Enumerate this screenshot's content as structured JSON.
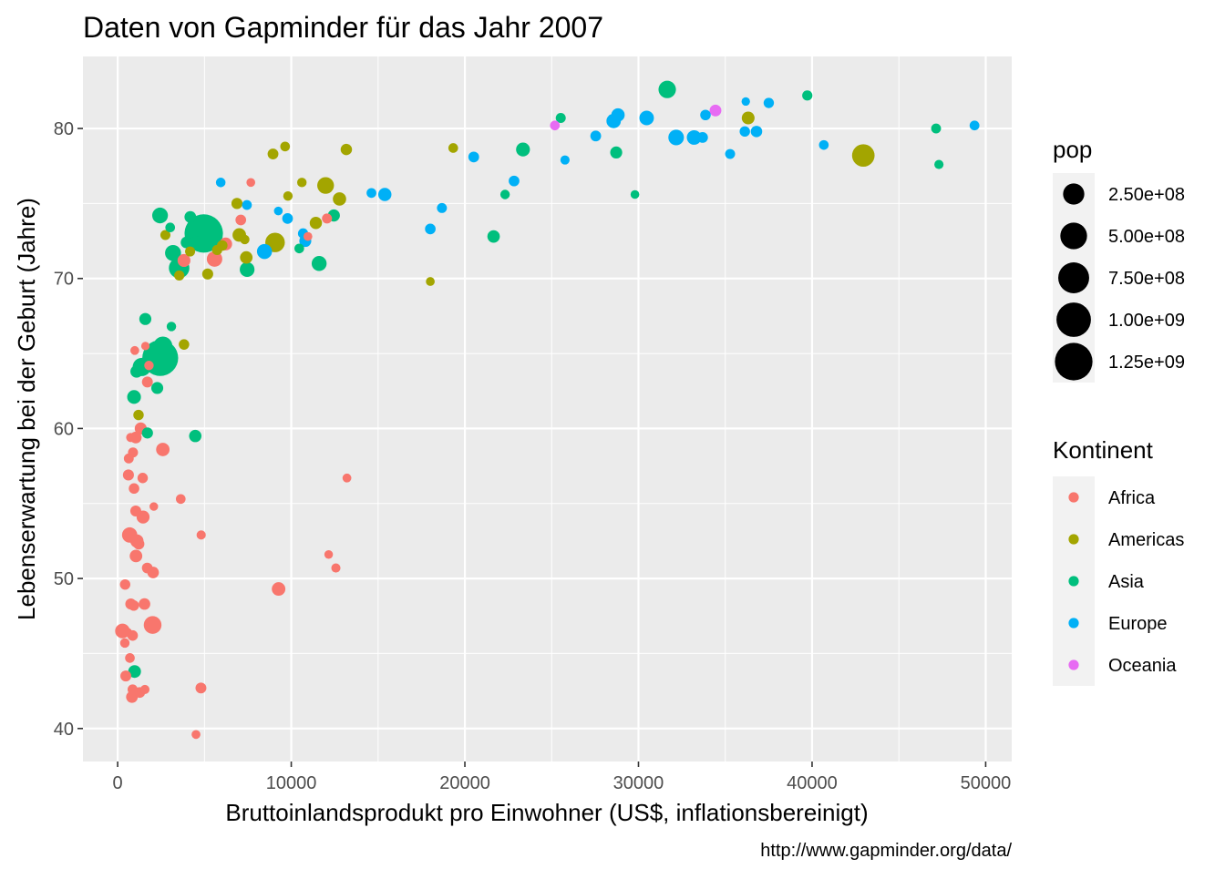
{
  "chart_data": {
    "type": "scatter",
    "title": "Daten von Gapminder für das Jahr 2007",
    "xlabel": "Bruttoinlandsprodukt pro Einwohner (US$, inflationsbereinigt)",
    "ylabel": "Lebenserwartung bei der Geburt (Jahre)",
    "caption": "http://www.gapminder.org/data/",
    "xlim": [
      -2000,
      51500
    ],
    "ylim": [
      37.8,
      84.8
    ],
    "x_ticks": [
      0,
      10000,
      20000,
      30000,
      40000,
      50000
    ],
    "x_tick_labels": [
      "0",
      "10000",
      "20000",
      "30000",
      "40000",
      "50000"
    ],
    "y_ticks": [
      40,
      50,
      60,
      70,
      80
    ],
    "y_tick_labels": [
      "40",
      "50",
      "60",
      "70",
      "80"
    ],
    "grid": true,
    "legend_position": "right",
    "size_legend": {
      "title": "pop",
      "entries": [
        {
          "value": 250000000,
          "label": "2.50e+08"
        },
        {
          "value": 500000000,
          "label": "5.00e+08"
        },
        {
          "value": 750000000,
          "label": "7.50e+08"
        },
        {
          "value": 1000000000,
          "label": "1.00e+09"
        },
        {
          "value": 1250000000,
          "label": "1.25e+09"
        }
      ]
    },
    "color_legend": {
      "title": "Kontinent",
      "entries": [
        {
          "name": "Africa",
          "color": "#F8766D"
        },
        {
          "name": "Americas",
          "color": "#A3A500"
        },
        {
          "name": "Asia",
          "color": "#00BF7D"
        },
        {
          "name": "Europe",
          "color": "#00B0F6"
        },
        {
          "name": "Oceania",
          "color": "#E76BF3"
        }
      ]
    },
    "series": [
      {
        "name": "Africa",
        "color": "#F8766D",
        "points": [
          [
            6223,
            72.3,
            33
          ],
          [
            4797,
            42.7,
            12
          ],
          [
            1441,
            56.7,
            8
          ],
          [
            12570,
            50.7,
            2
          ],
          [
            1217,
            52.3,
            14
          ],
          [
            430,
            49.6,
            8
          ],
          [
            2042,
            50.4,
            18
          ],
          [
            706,
            44.7,
            4
          ],
          [
            1704,
            50.7,
            10
          ],
          [
            986,
            65.2,
            1
          ],
          [
            278,
            46.5,
            64
          ],
          [
            3633,
            55.3,
            4
          ],
          [
            1545,
            48.3,
            18
          ],
          [
            2082,
            54.8,
            0.5
          ],
          [
            5581,
            71.3,
            80
          ],
          [
            12154,
            51.6,
            0.5
          ],
          [
            641,
            58.0,
            5
          ],
          [
            691,
            52.9,
            76
          ],
          [
            13206,
            56.7,
            1
          ],
          [
            753,
            59.4,
            2
          ],
          [
            1328,
            60.0,
            23
          ],
          [
            943,
            56.0,
            9
          ],
          [
            580,
            46.4,
            1.5
          ],
          [
            1463,
            54.1,
            35
          ],
          [
            1569,
            42.6,
            2
          ],
          [
            415,
            45.7,
            3
          ],
          [
            12057,
            74.0,
            6
          ],
          [
            1045,
            59.4,
            19
          ],
          [
            759,
            48.3,
            13
          ],
          [
            1042,
            54.5,
            12
          ],
          [
            1803,
            64.2,
            3
          ],
          [
            10957,
            72.8,
            1
          ],
          [
            3820,
            71.2,
            34
          ],
          [
            824,
            42.1,
            20
          ],
          [
            4811,
            52.9,
            2
          ],
          [
            620,
            56.9,
            13
          ],
          [
            2014,
            46.9,
            135
          ],
          [
            7670,
            76.4,
            0.8
          ],
          [
            863,
            46.2,
            9
          ],
          [
            1598,
            65.5,
            0.2
          ],
          [
            1712,
            63.1,
            12
          ],
          [
            862,
            42.6,
            6
          ],
          [
            926,
            48.2,
            9
          ],
          [
            9270,
            49.3,
            44
          ],
          [
            2602,
            58.6,
            42
          ],
          [
            4513,
            39.6,
            1
          ],
          [
            1107,
            52.5,
            40
          ],
          [
            883,
            58.4,
            6
          ],
          [
            7093,
            73.9,
            10
          ],
          [
            1056,
            51.5,
            30
          ],
          [
            1271,
            42.4,
            11
          ],
          [
            470,
            43.5,
            12
          ]
        ]
      },
      {
        "name": "Americas",
        "color": "#A3A500",
        "points": [
          [
            12779,
            75.3,
            40
          ],
          [
            3822,
            65.6,
            9
          ],
          [
            9066,
            72.4,
            190
          ],
          [
            36319,
            80.7,
            33
          ],
          [
            13172,
            78.6,
            16
          ],
          [
            7007,
            72.9,
            44
          ],
          [
            9645,
            78.8,
            4
          ],
          [
            8948,
            78.3,
            11
          ],
          [
            6025,
            72.2,
            9
          ],
          [
            6873,
            75.0,
            14
          ],
          [
            5728,
            71.9,
            7
          ],
          [
            5186,
            70.3,
            13
          ],
          [
            1202,
            60.9,
            8
          ],
          [
            3548,
            70.2,
            7
          ],
          [
            7321,
            72.6,
            3
          ],
          [
            11978,
            76.2,
            108
          ],
          [
            2749,
            72.9,
            6
          ],
          [
            9809,
            75.5,
            3
          ],
          [
            4173,
            71.8,
            6
          ],
          [
            7409,
            71.4,
            29
          ],
          [
            19329,
            78.7,
            4
          ],
          [
            18009,
            69.8,
            1
          ],
          [
            42952,
            78.2,
            301
          ],
          [
            10611,
            76.4,
            3
          ],
          [
            11416,
            73.7,
            26
          ]
        ]
      },
      {
        "name": "Asia",
        "color": "#00BF7D",
        "points": [
          [
            975,
            43.8,
            32
          ],
          [
            29796,
            75.6,
            0.7
          ],
          [
            1391,
            64.1,
            150
          ],
          [
            1714,
            59.7,
            14
          ],
          [
            4959,
            73.0,
            1319
          ],
          [
            39725,
            82.2,
            7
          ],
          [
            2452,
            64.7,
            1110
          ],
          [
            3541,
            70.7,
            224
          ],
          [
            11606,
            71.0,
            69
          ],
          [
            4471,
            59.5,
            27
          ],
          [
            25523,
            80.7,
            6
          ],
          [
            31656,
            82.6,
            127
          ],
          [
            4519,
            72.5,
            6
          ],
          [
            1593,
            67.3,
            23
          ],
          [
            23348,
            78.6,
            49
          ],
          [
            47307,
            77.6,
            2
          ],
          [
            10461,
            72.0,
            4
          ],
          [
            12452,
            74.2,
            24
          ],
          [
            3096,
            66.8,
            3
          ],
          [
            944,
            62.1,
            47
          ],
          [
            1091,
            63.8,
            28
          ],
          [
            22316,
            75.6,
            3
          ],
          [
            2606,
            65.5,
            169
          ],
          [
            3190,
            71.7,
            91
          ],
          [
            21655,
            72.8,
            28
          ],
          [
            47143,
            80.0,
            5
          ],
          [
            3970,
            72.4,
            20
          ],
          [
            4185,
            74.1,
            19
          ],
          [
            28718,
            78.4,
            23
          ],
          [
            7458,
            70.6,
            65
          ],
          [
            2442,
            74.2,
            85
          ],
          [
            3025,
            73.4,
            4
          ],
          [
            2281,
            62.7,
            22
          ]
        ]
      },
      {
        "name": "Europe",
        "color": "#00B0F6",
        "points": [
          [
            5937,
            76.4,
            3.6
          ],
          [
            36126,
            79.8,
            8.2
          ],
          [
            33693,
            79.4,
            10.4
          ],
          [
            7446,
            74.9,
            4.6
          ],
          [
            10681,
            73.0,
            7.3
          ],
          [
            14619,
            75.7,
            4.5
          ],
          [
            22833,
            76.5,
            10.2
          ],
          [
            35278,
            78.3,
            5.5
          ],
          [
            33207,
            79.3,
            5.2
          ],
          [
            30470,
            80.7,
            61
          ],
          [
            32170,
            79.4,
            82
          ],
          [
            27538,
            79.5,
            10.7
          ],
          [
            18009,
            73.3,
            10
          ],
          [
            36181,
            81.8,
            0.3
          ],
          [
            40676,
            78.9,
            4.1
          ],
          [
            28570,
            80.5,
            58
          ],
          [
            9254,
            74.5,
            0.7
          ],
          [
            36798,
            79.8,
            16.6
          ],
          [
            49357,
            80.2,
            4.6
          ],
          [
            15390,
            75.6,
            38.5
          ],
          [
            20510,
            78.1,
            10.6
          ],
          [
            10808,
            72.5,
            22.3
          ],
          [
            9787,
            74.0,
            10.2
          ],
          [
            18678,
            74.7,
            5.4
          ],
          [
            25768,
            77.9,
            2
          ],
          [
            28821,
            80.9,
            40.4
          ],
          [
            33860,
            80.9,
            9
          ],
          [
            37506,
            81.7,
            7.6
          ],
          [
            8458,
            71.8,
            71.2
          ],
          [
            33203,
            79.4,
            60.8
          ]
        ]
      },
      {
        "name": "Oceania",
        "color": "#E76BF3",
        "points": [
          [
            34435,
            81.2,
            20.4
          ],
          [
            25185,
            80.2,
            4.1
          ]
        ]
      }
    ]
  }
}
